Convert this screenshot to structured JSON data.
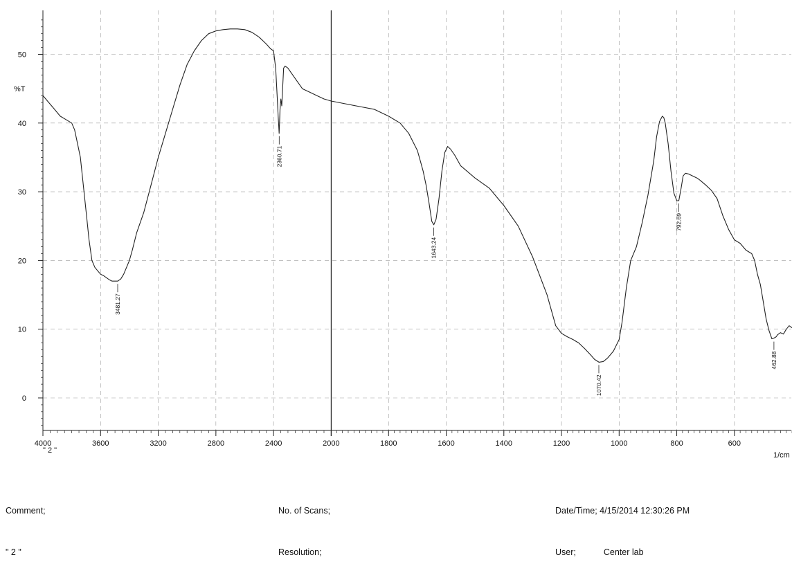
{
  "chart_data": {
    "type": "line",
    "ylabel": "%T",
    "xunit": "1/cm",
    "sample_label": "\" 2 \"",
    "x_reversed": true,
    "xlim": [
      4000,
      350
    ],
    "ylim": [
      -5,
      56
    ],
    "x_ticks": [
      4000,
      3600,
      3200,
      2800,
      2400,
      2000,
      1800,
      1600,
      1400,
      1200,
      1000,
      800,
      600
    ],
    "y_ticks": [
      0,
      10,
      20,
      30,
      40,
      50
    ],
    "grid": true,
    "series": [
      {
        "x": [
          4000,
          3960,
          3920,
          3880,
          3840,
          3800,
          3780,
          3760,
          3740,
          3720,
          3700,
          3680,
          3660,
          3640,
          3620,
          3600,
          3580,
          3560,
          3540,
          3520,
          3500,
          3481,
          3460,
          3440,
          3420,
          3400,
          3380,
          3350,
          3300,
          3250,
          3200,
          3150,
          3100,
          3050,
          3000,
          2950,
          2900,
          2850,
          2800,
          2750,
          2700,
          2650,
          2600,
          2550,
          2500,
          2450,
          2420,
          2400,
          2385,
          2375,
          2368,
          2361,
          2355,
          2349,
          2343,
          2337,
          2330,
          2320,
          2300,
          2250,
          2200,
          2150,
          2100,
          2050,
          2000,
          1950,
          1900,
          1850,
          1800,
          1760,
          1730,
          1700,
          1690,
          1680,
          1670,
          1660,
          1650,
          1643,
          1635,
          1625,
          1615,
          1605,
          1595,
          1585,
          1570,
          1550,
          1500,
          1450,
          1400,
          1350,
          1300,
          1250,
          1220,
          1200,
          1180,
          1160,
          1140,
          1120,
          1100,
          1085,
          1070,
          1055,
          1040,
          1020,
          1000,
          990,
          975,
          960,
          940,
          920,
          900,
          880,
          870,
          860,
          850,
          845,
          840,
          830,
          820,
          810,
          800,
          793,
          785,
          778,
          770,
          760,
          750,
          740,
          730,
          720,
          700,
          680,
          660,
          640,
          620,
          600,
          580,
          560,
          540,
          530,
          520,
          510,
          500,
          490,
          480,
          470,
          463,
          455,
          450,
          440,
          430,
          420,
          410,
          400,
          390,
          380,
          370,
          360,
          350
        ],
        "y": [
          44,
          43,
          42,
          41,
          40.5,
          40,
          39,
          37,
          35,
          31,
          27,
          23,
          20,
          19,
          18.5,
          18,
          17.8,
          17.5,
          17.2,
          17,
          17,
          17,
          17.3,
          18,
          19,
          20,
          21.5,
          24,
          27,
          31,
          35,
          38.5,
          42,
          45.5,
          48.5,
          50.5,
          52,
          53,
          53.4,
          53.6,
          53.7,
          53.7,
          53.6,
          53.2,
          52.5,
          51.5,
          50.8,
          50.5,
          48,
          44,
          41,
          38.5,
          42,
          43.5,
          42.5,
          45,
          48,
          48.3,
          48,
          46.5,
          45,
          44.5,
          44,
          43.5,
          43.2,
          42.8,
          42.4,
          42,
          41,
          40,
          38.5,
          36,
          34.5,
          33,
          31,
          28.5,
          25.7,
          25.2,
          26,
          29,
          33,
          35.7,
          36.6,
          36.2,
          35.3,
          33.8,
          32,
          30.5,
          28,
          25,
          20.5,
          15,
          10.5,
          9.4,
          8.9,
          8.5,
          8,
          7.2,
          6.3,
          5.6,
          5.2,
          5.3,
          5.8,
          6.8,
          8.5,
          11,
          16,
          20,
          22,
          25.5,
          29.5,
          34.5,
          38,
          40.2,
          41,
          40.8,
          40,
          37,
          33,
          29.8,
          28.7,
          28.7,
          30.5,
          32.3,
          32.7,
          32.6,
          32.4,
          32.2,
          32,
          31.7,
          31,
          30.2,
          29,
          26.5,
          24.5,
          23,
          22.5,
          21.5,
          21,
          20,
          18,
          16.5,
          14,
          11.5,
          9.8,
          8.6,
          8.7,
          8.9,
          9.2,
          9.5,
          9.3,
          10,
          10.5,
          10.2,
          11,
          11.5,
          12,
          11.7,
          12.5
        ]
      }
    ],
    "annotations": [
      {
        "x": 3481.27,
        "y": 17.0,
        "label": "3481.27"
      },
      {
        "x": 2360.71,
        "y": 38.5,
        "label": "2360.71"
      },
      {
        "x": 1643.24,
        "y": 25.2,
        "label": "1643.24"
      },
      {
        "x": 1070.42,
        "y": 5.2,
        "label": "1070.42"
      },
      {
        "x": 792.69,
        "y": 28.7,
        "label": "792.69"
      },
      {
        "x": 462.88,
        "y": 8.6,
        "label": "462.88"
      }
    ]
  },
  "footer": {
    "comment_label": "Comment;",
    "comment_value": "\" 2 \"",
    "scans_label": "No. of Scans;",
    "resolution_label": "Resolution;",
    "datetime_label": "Date/Time;",
    "datetime_value": "4/15/2014 12:30:26 PM",
    "user_label": "User;",
    "user_value": "Center lab"
  }
}
